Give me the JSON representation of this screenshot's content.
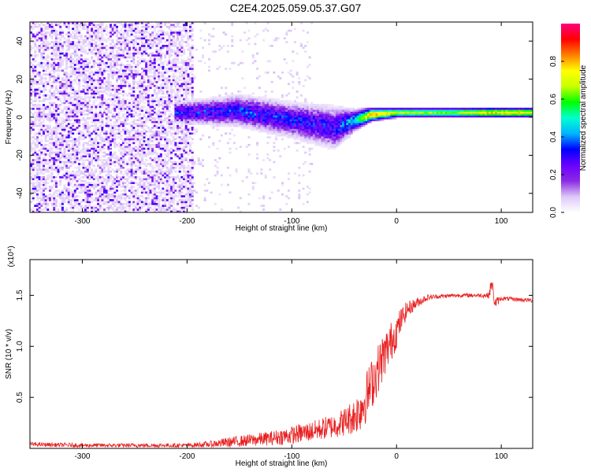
{
  "title": "C2E4.2025.059.05.37.G07",
  "chart_data": [
    {
      "type": "heatmap",
      "xlabel": "Height of straight line (km)",
      "ylabel": "Frequency (Hz)",
      "xlim": [
        -350,
        130
      ],
      "ylim": [
        -50,
        50
      ],
      "x_ticks": [
        -300,
        -200,
        -100,
        0,
        100
      ],
      "y_ticks": [
        -40,
        -20,
        0,
        20,
        40
      ],
      "colorbar": {
        "label": "Normalized spectral amplitude",
        "range": [
          0,
          1
        ],
        "ticks": [
          0.0,
          0.2,
          0.4,
          0.6,
          0.8
        ],
        "colors": [
          "#ffffff",
          "#ddc8f8",
          "#8a2be2",
          "#6a00ff",
          "#0000ff",
          "#00b4ff",
          "#00ffd0",
          "#00ff00",
          "#c8ff00",
          "#ffff00",
          "#ff8000",
          "#ff0000",
          "#ff0080"
        ]
      },
      "noise_region": {
        "x": [
          -350,
          -195
        ],
        "amplitude": 0.2
      },
      "ridge": [
        {
          "x": -210,
          "freq": 2,
          "width": 6,
          "amplitude": 0.33
        },
        {
          "x": -150,
          "freq": 3,
          "width": 9,
          "amplitude": 0.36
        },
        {
          "x": -100,
          "freq": -2,
          "width": 10,
          "amplitude": 0.34
        },
        {
          "x": -60,
          "freq": -6,
          "width": 12,
          "amplitude": 0.33
        },
        {
          "x": -40,
          "freq": -2,
          "width": 6,
          "amplitude": 0.5
        },
        {
          "x": -25,
          "freq": 1,
          "width": 4,
          "amplitude": 0.85
        },
        {
          "x": 0,
          "freq": 2,
          "width": 3,
          "amplitude": 0.7
        },
        {
          "x": 50,
          "freq": 2,
          "width": 3,
          "amplitude": 0.65
        },
        {
          "x": 90,
          "freq": 2,
          "width": 3,
          "amplitude": 0.8
        },
        {
          "x": 130,
          "freq": 2,
          "width": 3,
          "amplitude": 0.75
        }
      ]
    },
    {
      "type": "line",
      "xlabel": "Height of straight line (km)",
      "ylabel": "SNR (10 * v/v)",
      "y_multiplier": "(x10⁴)",
      "xlim": [
        -350,
        130
      ],
      "ylim": [
        0,
        1.85
      ],
      "x_ticks": [
        -300,
        -200,
        -100,
        0,
        100
      ],
      "y_ticks": [
        0.5,
        1.0,
        1.5
      ],
      "y_tick_labels": [
        "0.5",
        "1.0",
        "1.5"
      ],
      "color": "#e82020",
      "series": [
        {
          "x": [
            -350,
            -300,
            -250,
            -200,
            -180,
            -160,
            -140,
            -120,
            -100,
            -80,
            -60,
            -50,
            -40,
            -35,
            -30,
            -25,
            -20,
            -15,
            -10,
            -5,
            0,
            5,
            10,
            20,
            30,
            40,
            60,
            80,
            88,
            91,
            94,
            100,
            115,
            130
          ],
          "y": [
            0.04,
            0.03,
            0.03,
            0.03,
            0.04,
            0.06,
            0.08,
            0.1,
            0.13,
            0.17,
            0.22,
            0.26,
            0.32,
            0.38,
            0.48,
            0.6,
            0.72,
            0.85,
            0.95,
            1.05,
            1.15,
            1.27,
            1.36,
            1.43,
            1.48,
            1.49,
            1.5,
            1.5,
            1.5,
            1.62,
            1.42,
            1.47,
            1.46,
            1.45
          ],
          "noise": [
            0.02,
            0.02,
            0.02,
            0.02,
            0.03,
            0.05,
            0.06,
            0.07,
            0.09,
            0.1,
            0.12,
            0.14,
            0.18,
            0.22,
            0.25,
            0.25,
            0.25,
            0.24,
            0.22,
            0.2,
            0.17,
            0.12,
            0.08,
            0.05,
            0.03,
            0.02,
            0.02,
            0.02,
            0.03,
            0.08,
            0.06,
            0.02,
            0.02,
            0.02
          ]
        }
      ]
    }
  ]
}
